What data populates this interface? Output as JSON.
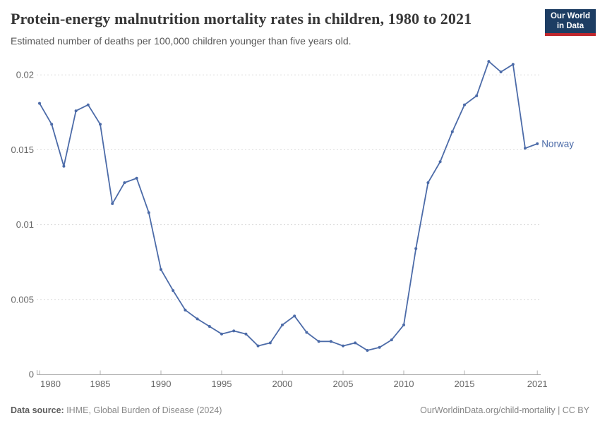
{
  "header": {
    "title": "Protein-energy malnutrition mortality rates in children, 1980 to 2021",
    "subtitle": "Estimated number of deaths per 100,000 children younger than five years old.",
    "logo": {
      "line1": "Our World",
      "line2": "in Data",
      "bg_color": "#1d3d63",
      "bar_color": "#c0272d"
    }
  },
  "chart_data": {
    "type": "line",
    "title": "Protein-energy malnutrition mortality rates in children, 1980 to 2021",
    "subtitle": "Estimated number of deaths per 100,000 children younger than five years old.",
    "xlabel": "",
    "ylabel": "",
    "xlim": [
      1980,
      2021
    ],
    "ylim": [
      0,
      0.021
    ],
    "grid": "horizontal-dashed",
    "legend_position": "end-of-line-label",
    "x_ticks": [
      1980,
      1985,
      1990,
      1995,
      2000,
      2005,
      2010,
      2015,
      2021
    ],
    "y_ticks": [
      0,
      0.005,
      0.01,
      0.015,
      0.02
    ],
    "x": [
      1980,
      1981,
      1982,
      1983,
      1984,
      1985,
      1986,
      1987,
      1988,
      1989,
      1990,
      1991,
      1992,
      1993,
      1994,
      1995,
      1996,
      1997,
      1998,
      1999,
      2000,
      2001,
      2002,
      2003,
      2004,
      2005,
      2006,
      2007,
      2008,
      2009,
      2010,
      2011,
      2012,
      2013,
      2014,
      2015,
      2016,
      2017,
      2018,
      2019,
      2020,
      2021
    ],
    "series": [
      {
        "name": "Norway",
        "color": "#4c6ba8",
        "values": [
          0.0181,
          0.0167,
          0.0139,
          0.0176,
          0.018,
          0.0167,
          0.0114,
          0.0128,
          0.0131,
          0.0108,
          0.007,
          0.0056,
          0.0043,
          0.0037,
          0.0032,
          0.0027,
          0.0029,
          0.0027,
          0.0019,
          0.0021,
          0.0033,
          0.0039,
          0.0028,
          0.0022,
          0.0022,
          0.0019,
          0.0021,
          0.0016,
          0.0018,
          0.0023,
          0.0033,
          0.0084,
          0.0128,
          0.0142,
          0.0162,
          0.018,
          0.0186,
          0.0209,
          0.0202,
          0.0207,
          0.0151,
          0.0154
        ]
      }
    ],
    "colors": {
      "gridline": "#dcdcdc",
      "axis_line": "#a8a8a8",
      "tick_mark": "#b0b0b0",
      "tick_label": "#666666"
    }
  },
  "footer": {
    "source_label": "Data source:",
    "source_rest": " IHME, Global Burden of Disease (2024)",
    "credit": "OurWorldinData.org/child-mortality | CC BY"
  }
}
